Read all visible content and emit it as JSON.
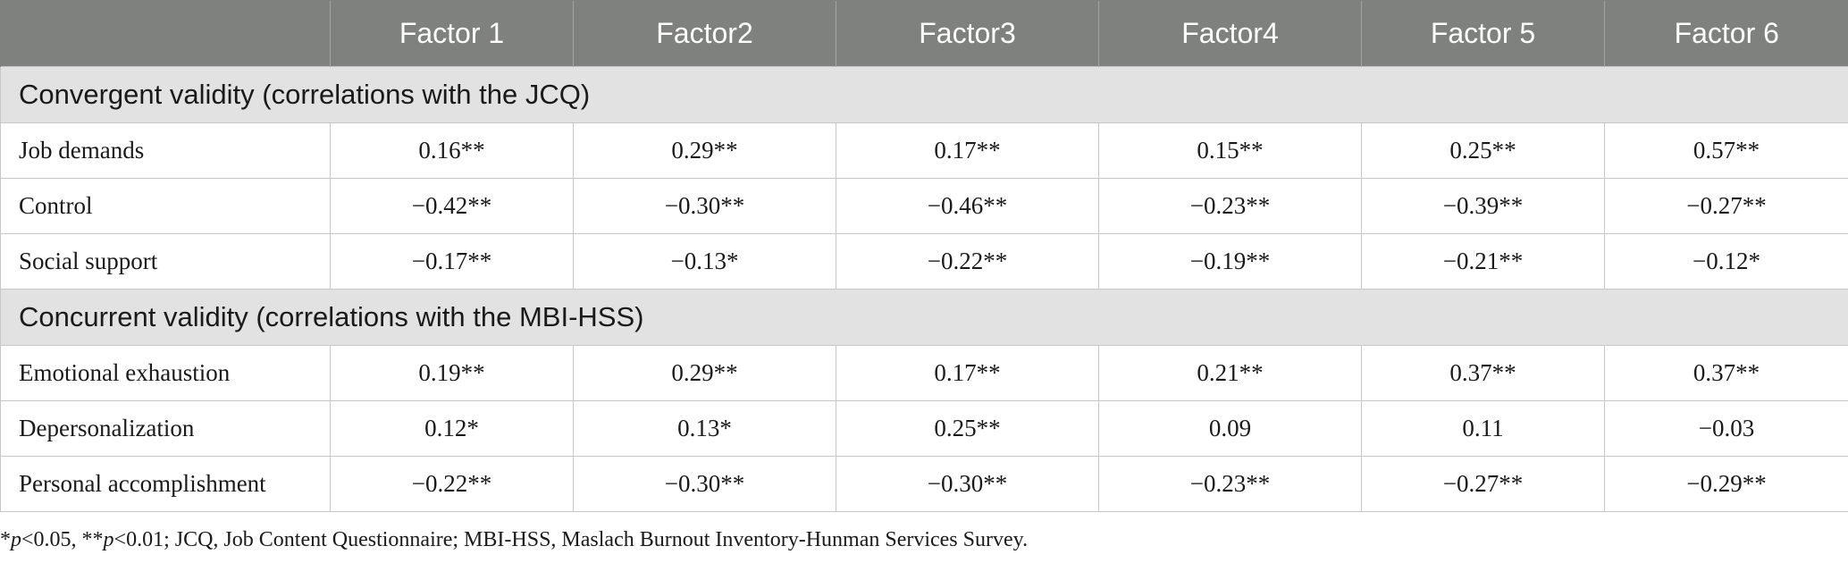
{
  "table": {
    "header": [
      "",
      "Factor 1",
      "Factor2",
      "Factor3",
      "Factor4",
      "Factor 5",
      "Factor 6"
    ],
    "sections": [
      {
        "title": "Convergent validity (correlations with the JCQ)",
        "rows": [
          {
            "label": "Job demands",
            "values": [
              "0.16**",
              "0.29**",
              "0.17**",
              "0.15**",
              "0.25**",
              "0.57**"
            ]
          },
          {
            "label": "Control",
            "values": [
              "−0.42**",
              "−0.30**",
              "−0.46**",
              "−0.23**",
              "−0.39**",
              "−0.27**"
            ]
          },
          {
            "label": "Social support",
            "values": [
              "−0.17**",
              "−0.13*",
              "−0.22**",
              "−0.19**",
              "−0.21**",
              "−0.12*"
            ]
          }
        ]
      },
      {
        "title": "Concurrent validity (correlations with the MBI-HSS)",
        "rows": [
          {
            "label": "Emotional exhaustion",
            "values": [
              "0.19**",
              "0.29**",
              "0.17**",
              "0.21**",
              "0.37**",
              "0.37**"
            ]
          },
          {
            "label": "Depersonalization",
            "values": [
              "0.12*",
              "0.13*",
              "0.25**",
              "0.09",
              "0.11",
              "−0.03"
            ]
          },
          {
            "label": "Personal accomplishment",
            "values": [
              "−0.22**",
              "−0.30**",
              "−0.30**",
              "−0.23**",
              "−0.27**",
              "−0.29**"
            ]
          }
        ]
      }
    ]
  },
  "footnote": {
    "star1": "*",
    "p1": "p",
    "part1": "<0.05, **",
    "p2": "p",
    "part2": "<0.01; JCQ, Job Content Questionnaire; MBI-HSS, Maslach Burnout Inventory-Hunman Services Survey."
  }
}
